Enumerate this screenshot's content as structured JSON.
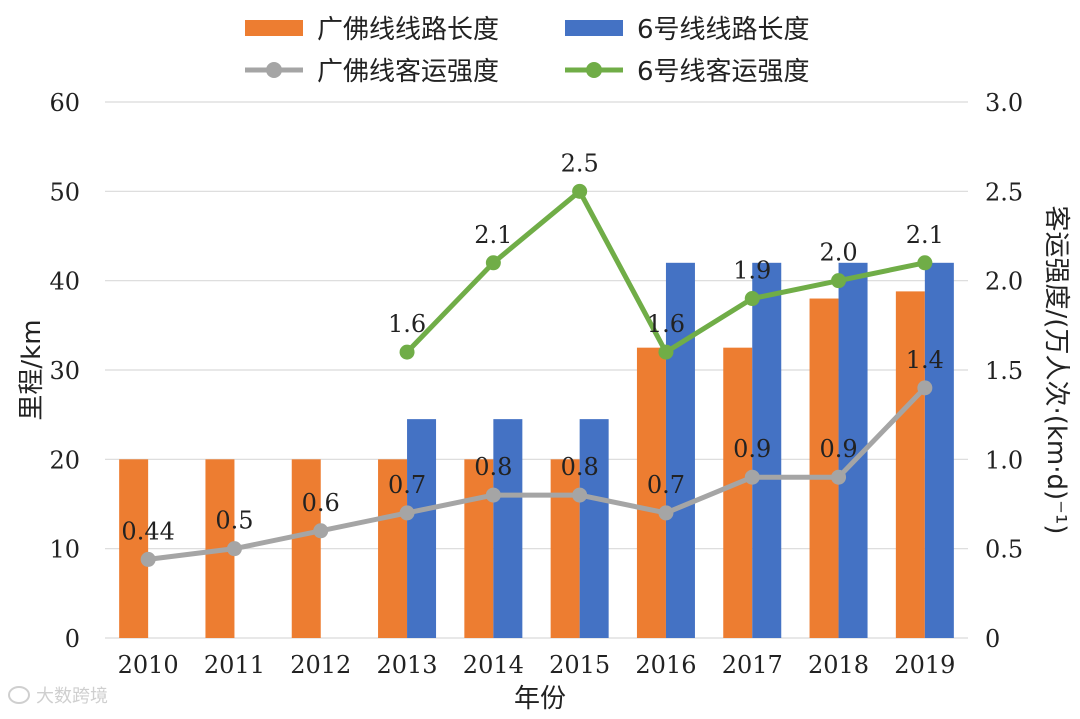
{
  "chart_data": {
    "type": "bar",
    "categories": [
      "2010",
      "2011",
      "2012",
      "2013",
      "2014",
      "2015",
      "2016",
      "2017",
      "2018",
      "2019"
    ],
    "xlabel": "年份",
    "ylabel": "里程/km",
    "y2label": "客运强度/(万人次·(km·d)⁻¹)",
    "ylim": [
      0,
      60
    ],
    "y_ticks": [
      "0",
      "10",
      "20",
      "30",
      "40",
      "50",
      "60"
    ],
    "y2lim": [
      0,
      3.0
    ],
    "y2_ticks": [
      "0",
      "0.5",
      "1.0",
      "1.5",
      "2.0",
      "2.5",
      "3.0"
    ],
    "grid": true,
    "legend_position": "top",
    "series": [
      {
        "name": "广佛线线路长度",
        "kind": "bar",
        "axis": "left",
        "color": "#ED7D31",
        "values": [
          20.0,
          20.0,
          20.0,
          20.0,
          20.0,
          20.0,
          32.5,
          32.5,
          38.0,
          38.8
        ]
      },
      {
        "name": "6号线线路长度",
        "kind": "bar",
        "axis": "left",
        "color": "#4472C4",
        "values": [
          null,
          null,
          null,
          24.5,
          24.5,
          24.5,
          42.0,
          42.0,
          42.0,
          42.0
        ]
      },
      {
        "name": "广佛线客运强度",
        "kind": "line",
        "axis": "right",
        "color": "#A5A5A5",
        "values": [
          0.44,
          0.5,
          0.6,
          0.7,
          0.8,
          0.8,
          0.7,
          0.9,
          0.9,
          1.4
        ],
        "labels": [
          "0.44",
          "0.5",
          "0.6",
          "0.7",
          "0.8",
          "0.8",
          "0.7",
          "0.9",
          "0.9",
          "1.4"
        ]
      },
      {
        "name": "6号线客运强度",
        "kind": "line",
        "axis": "right",
        "color": "#70AD47",
        "values": [
          null,
          null,
          null,
          1.6,
          2.1,
          2.5,
          1.6,
          1.9,
          2.0,
          2.1
        ],
        "labels": [
          "",
          "",
          "",
          "1.6",
          "2.1",
          "2.5",
          "1.6",
          "1.9",
          "2.0",
          "2.1"
        ]
      }
    ]
  },
  "watermark": {
    "text": "大数跨境",
    "icon": "weibo-icon"
  }
}
